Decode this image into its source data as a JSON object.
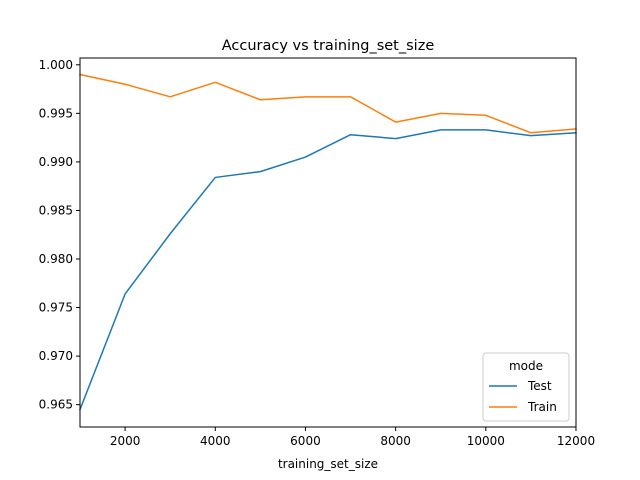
{
  "chart_data": {
    "type": "line",
    "title": "Accuracy vs training_set_size",
    "xlabel": "training_set_size",
    "ylabel": "",
    "xlim": [
      1000,
      12000
    ],
    "ylim": [
      0.9627,
      1.0007
    ],
    "x_ticks": [
      2000,
      4000,
      6000,
      8000,
      10000,
      12000
    ],
    "y_ticks": [
      0.965,
      0.97,
      0.975,
      0.98,
      0.985,
      0.99,
      0.995,
      1.0
    ],
    "y_tick_labels": [
      "0.965",
      "0.970",
      "0.975",
      "0.980",
      "0.985",
      "0.990",
      "0.995",
      "1.000"
    ],
    "grid": false,
    "legend": {
      "title": "mode",
      "placement": "lower-right"
    },
    "x": [
      1000,
      2000,
      3000,
      4000,
      5000,
      6000,
      7000,
      8000,
      9000,
      10000,
      11000,
      12000
    ],
    "series": [
      {
        "name": "Test",
        "color": "#1f77b4",
        "values": [
          0.9645,
          0.9764,
          0.9826,
          0.9884,
          0.989,
          0.9905,
          0.9928,
          0.9924,
          0.9933,
          0.9933,
          0.9927,
          0.993
        ]
      },
      {
        "name": "Train",
        "color": "#ff7f0e",
        "values": [
          0.999,
          0.998,
          0.9967,
          0.9982,
          0.9964,
          0.9967,
          0.9967,
          0.9941,
          0.995,
          0.9948,
          0.993,
          0.9934
        ]
      }
    ]
  }
}
